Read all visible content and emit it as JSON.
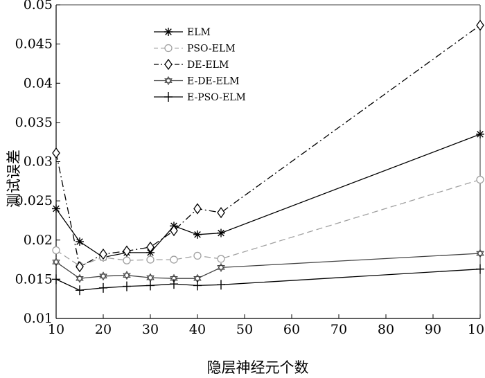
{
  "chart_data": {
    "type": "line",
    "xlabel": "隐层神经元个数",
    "ylabel": "测试误差",
    "xlim": [
      10,
      100
    ],
    "ylim": [
      0.01,
      0.05
    ],
    "xticks": [
      "10",
      "20",
      "30",
      "40",
      "50",
      "60",
      "70",
      "80",
      "90",
      "100"
    ],
    "yticks": [
      "0.01",
      "0.015",
      "0.02",
      "0.025",
      "0.03",
      "0.035",
      "0.04",
      "0.045",
      "0.05"
    ],
    "grid": false,
    "legend_position": "top-left",
    "x": [
      10,
      15,
      20,
      25,
      30,
      35,
      40,
      45,
      100
    ],
    "series": [
      {
        "name": "ELM",
        "marker": "asterisk",
        "line": "solid",
        "color": "#000000",
        "values": [
          0.024,
          0.0198,
          0.0178,
          0.0184,
          0.0184,
          0.0218,
          0.0207,
          0.0209,
          0.0335
        ]
      },
      {
        "name": "PSO-ELM",
        "marker": "circle",
        "line": "dashed",
        "color": "#a0a0a0",
        "values": [
          0.0187,
          0.0167,
          0.0178,
          0.0174,
          0.0175,
          0.0175,
          0.018,
          0.0176,
          0.0277
        ]
      },
      {
        "name": "DE-ELM",
        "marker": "diamond",
        "line": "dashdot",
        "color": "#000000",
        "values": [
          0.0311,
          0.0166,
          0.0182,
          0.0186,
          0.0191,
          0.0212,
          0.024,
          0.0235,
          0.0474
        ]
      },
      {
        "name": "E-DE-ELM",
        "marker": "hexagram",
        "line": "solid",
        "color": "#444444",
        "values": [
          0.0172,
          0.0151,
          0.0154,
          0.0155,
          0.0152,
          0.0151,
          0.0151,
          0.0165,
          0.0183
        ]
      },
      {
        "name": "E-PSO-ELM",
        "marker": "plus",
        "line": "solid",
        "color": "#000000",
        "values": [
          0.015,
          0.0136,
          0.0139,
          0.0141,
          0.0142,
          0.0144,
          0.0142,
          0.0143,
          0.0163
        ]
      }
    ]
  }
}
